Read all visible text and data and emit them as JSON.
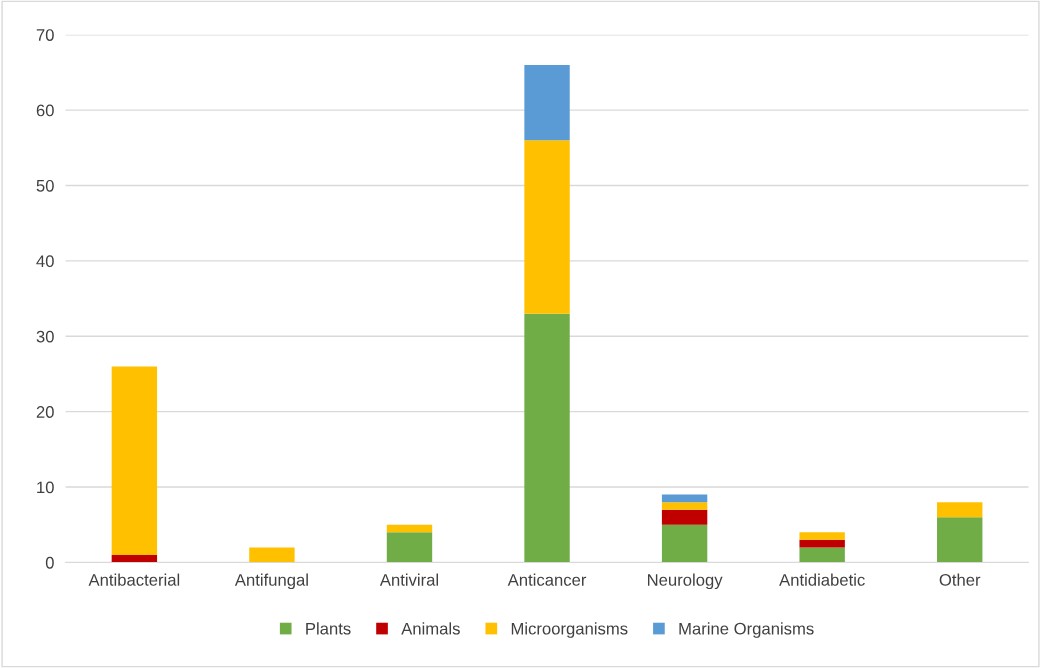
{
  "chart_data": {
    "type": "bar",
    "stacked": true,
    "categories": [
      "Antibacterial",
      "Antifungal",
      "Antiviral",
      "Anticancer",
      "Neurology",
      "Antidiabetic",
      "Other"
    ],
    "series": [
      {
        "name": "Plants",
        "color": "#70ad47",
        "values": [
          0,
          0,
          4,
          33,
          5,
          2,
          6
        ]
      },
      {
        "name": "Animals",
        "color": "#c00000",
        "values": [
          1,
          0,
          0,
          0,
          2,
          1,
          0
        ]
      },
      {
        "name": "Microorganisms",
        "color": "#ffc000",
        "values": [
          25,
          2,
          1,
          23,
          1,
          1,
          2
        ]
      },
      {
        "name": "Marine Organisms",
        "color": "#5b9bd5",
        "values": [
          0,
          0,
          0,
          10,
          1,
          0,
          0
        ]
      }
    ],
    "ylim": [
      0,
      70
    ],
    "yticks": [
      0,
      10,
      20,
      30,
      40,
      50,
      60,
      70
    ],
    "grid": "y",
    "legend": "bottom"
  }
}
